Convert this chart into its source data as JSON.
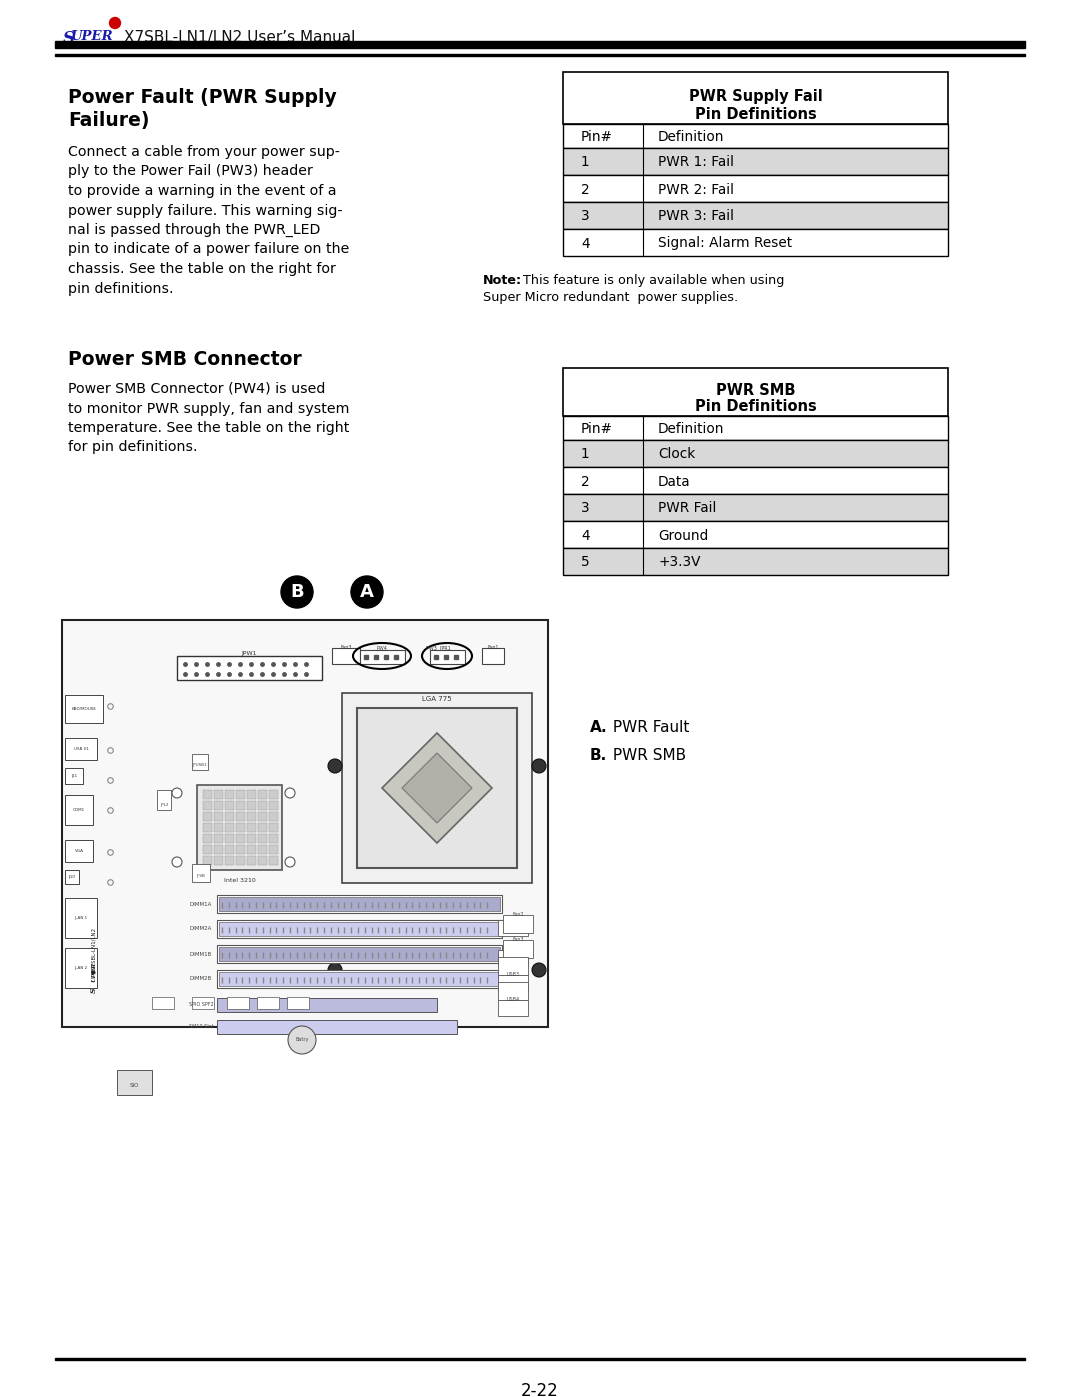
{
  "page_number": "2-22",
  "background_color": "#ffffff",
  "section1_title_line1": "Power Fault (PWR Supply",
  "section1_title_line2": "Failure)",
  "section1_body": [
    "Connect a cable from your power sup-",
    "ply to the Power Fail (PW3) header",
    "to provide a warning in the event of a",
    "power supply failure. This warning sig-",
    "nal is passed through the PWR_LED",
    "pin to indicate of a power failure on the",
    "chassis. See the table on the right for",
    "pin definitions."
  ],
  "table1_title_line1": "PWR Supply Fail",
  "table1_title_line2": "Pin Definitions",
  "table1_header": [
    "Pin#",
    "Definition"
  ],
  "table1_rows": [
    [
      "1",
      "PWR 1: Fail"
    ],
    [
      "2",
      "PWR 2: Fail"
    ],
    [
      "3",
      "PWR 3: Fail"
    ],
    [
      "4",
      "Signal: Alarm Reset"
    ]
  ],
  "table1_shaded_rows": [
    0,
    2
  ],
  "note_line1": "Note:  This feature is only available when using",
  "note_line2": "Super Micro redundant  power supplies.",
  "section2_title": "Power SMB Connector",
  "section2_body": [
    "Power SMB Connector (PW4) is used",
    "to monitor PWR supply, fan and system",
    "temperature. See the table on the right",
    "for pin definitions."
  ],
  "table2_title_line1": "PWR SMB",
  "table2_title_line2": "Pin Definitions",
  "table2_header": [
    "Pin#",
    "Definition"
  ],
  "table2_rows": [
    [
      "1",
      "Clock"
    ],
    [
      "2",
      "Data"
    ],
    [
      "3",
      "PWR Fail"
    ],
    [
      "4",
      "Ground"
    ],
    [
      "5",
      "+3.3V"
    ]
  ],
  "table2_shaded_rows": [
    0,
    2,
    4
  ],
  "legend_A": " PWR Fault",
  "legend_B": " PWR SMB",
  "shaded_color": "#d8d8d8",
  "super_color": "#1a1aaa",
  "dot_color": "#cc0000",
  "board_color": "#f5f5f5",
  "board_outline": "#333333"
}
